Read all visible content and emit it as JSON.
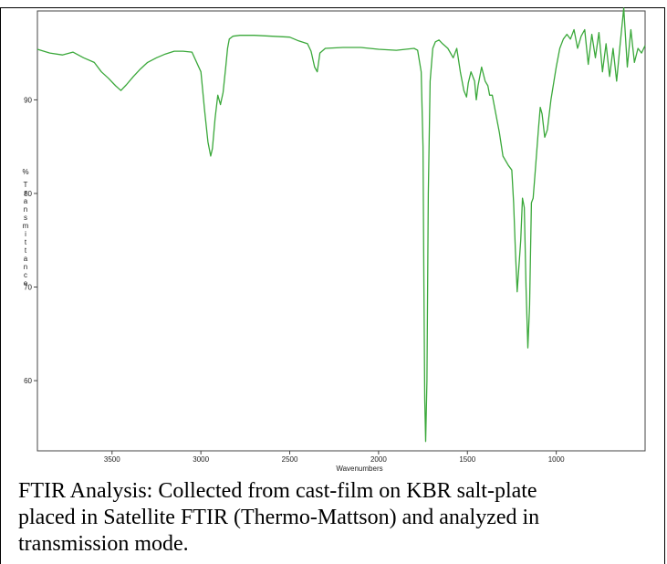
{
  "chart_data": {
    "type": "line",
    "title": "",
    "xlabel": "Wavenumbers",
    "ylabel": "% Transmittance",
    "x_reversed": true,
    "xlim": [
      3920,
      500
    ],
    "ylim": [
      52.5,
      99.5
    ],
    "x_ticks": [
      "3500",
      "3000",
      "2500",
      "2000",
      "1500",
      "1000"
    ],
    "y_ticks": [
      "90",
      "80",
      "70",
      "60"
    ],
    "grid": false,
    "line_color": "#3aa83a",
    "series": [
      {
        "x": [
          3920,
          3850,
          3780,
          3720,
          3660,
          3600,
          3560,
          3520,
          3480,
          3450,
          3420,
          3380,
          3340,
          3300,
          3250,
          3200,
          3150,
          3100,
          3050,
          3000,
          2980,
          2960,
          2945,
          2935,
          2920,
          2905,
          2890,
          2875,
          2860,
          2850,
          2840,
          2820,
          2780,
          2700,
          2600,
          2500,
          2450,
          2400,
          2380,
          2360,
          2345,
          2330,
          2300,
          2200,
          2100,
          2000,
          1900,
          1800,
          1780,
          1760,
          1750,
          1745,
          1740,
          1735,
          1728,
          1720,
          1710,
          1695,
          1680,
          1660,
          1640,
          1610,
          1580,
          1560,
          1540,
          1520,
          1505,
          1495,
          1480,
          1460,
          1450,
          1440,
          1420,
          1400,
          1385,
          1375,
          1360,
          1340,
          1320,
          1300,
          1270,
          1250,
          1240,
          1230,
          1220,
          1200,
          1190,
          1180,
          1170,
          1160,
          1150,
          1140,
          1130,
          1120,
          1100,
          1090,
          1080,
          1065,
          1050,
          1030,
          1000,
          980,
          960,
          940,
          920,
          900,
          880,
          860,
          840,
          820,
          800,
          780,
          760,
          740,
          720,
          700,
          680,
          660,
          640,
          620,
          600,
          580,
          560,
          540,
          520,
          500
        ],
        "y": [
          95.4,
          95.0,
          94.8,
          95.1,
          94.5,
          94.0,
          93.0,
          92.3,
          91.5,
          91.0,
          91.6,
          92.5,
          93.3,
          94.0,
          94.5,
          94.9,
          95.2,
          95.2,
          95.1,
          93.0,
          89.0,
          85.5,
          84.0,
          84.8,
          88.0,
          90.5,
          89.5,
          90.8,
          93.5,
          95.5,
          96.5,
          96.8,
          96.9,
          96.9,
          96.8,
          96.7,
          96.3,
          96.0,
          95.2,
          93.5,
          93.0,
          95.0,
          95.5,
          95.6,
          95.6,
          95.4,
          95.3,
          95.5,
          95.3,
          93.0,
          85.0,
          70.0,
          58.0,
          53.5,
          60.0,
          80.0,
          92.0,
          95.5,
          96.2,
          96.4,
          96.0,
          95.5,
          94.5,
          95.5,
          93.0,
          91.0,
          90.3,
          91.8,
          93.0,
          92.0,
          90.0,
          91.5,
          93.5,
          92.0,
          91.5,
          90.5,
          90.5,
          88.5,
          86.5,
          84.0,
          83.0,
          82.5,
          79.0,
          74.0,
          69.5,
          75.0,
          79.5,
          78.5,
          70.0,
          63.5,
          68.0,
          79.0,
          79.5,
          82.0,
          87.0,
          89.2,
          88.5,
          86.0,
          86.8,
          90.0,
          93.5,
          95.5,
          96.5,
          97.0,
          96.5,
          97.5,
          95.5,
          96.8,
          97.5,
          93.8,
          97.0,
          94.5,
          97.2,
          93.0,
          96.0,
          92.5,
          95.5,
          92.0,
          96.0,
          99.8,
          93.5,
          97.5,
          94.0,
          95.5,
          95.0,
          95.8
        ]
      }
    ]
  },
  "caption": {
    "line1": "FTIR Analysis: Collected from cast-film on KBR salt-plate",
    "line2": "placed in Satellite FTIR (Thermo-Mattson) and analyzed in",
    "line3": "transmission mode."
  }
}
